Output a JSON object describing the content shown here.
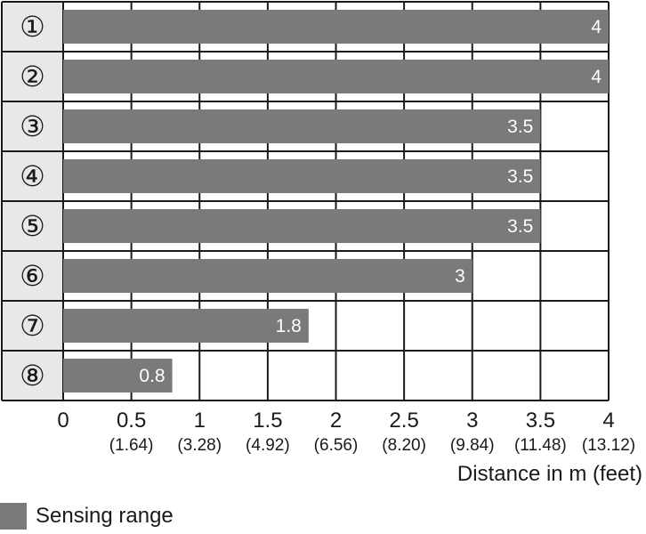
{
  "chart_data": {
    "type": "bar",
    "orientation": "horizontal",
    "categories": [
      "①",
      "②",
      "③",
      "④",
      "⑤",
      "⑥",
      "⑦",
      "⑧"
    ],
    "values": [
      4,
      4,
      3.5,
      3.5,
      3.5,
      3,
      1.8,
      0.8
    ],
    "data_labels": [
      "4",
      "4",
      "3.5",
      "3.5",
      "3.5",
      "3",
      "1.8",
      "0.8"
    ],
    "xlabel": "Distance in m (feet)",
    "xlim": [
      0,
      4
    ],
    "x_ticks": [
      {
        "value": 0,
        "label": "0",
        "sub": ""
      },
      {
        "value": 0.5,
        "label": "0.5",
        "sub": "(1.64)"
      },
      {
        "value": 1,
        "label": "1",
        "sub": "(3.28)"
      },
      {
        "value": 1.5,
        "label": "1.5",
        "sub": "(4.92)"
      },
      {
        "value": 2,
        "label": "2",
        "sub": "(6.56)"
      },
      {
        "value": 2.5,
        "label": "2.5",
        "sub": "(8.20)"
      },
      {
        "value": 3,
        "label": "3",
        "sub": "(9.84)"
      },
      {
        "value": 3.5,
        "label": "3.5",
        "sub": "(11.48)"
      },
      {
        "value": 4,
        "label": "4",
        "sub": "(13.12)"
      }
    ],
    "grid": true,
    "legend": {
      "label": "Sensing range",
      "placement": "bottom-left"
    },
    "colors": {
      "bar": "#7a7a7c",
      "label_column": "#e8e8e8",
      "grid": "#1a1a1a"
    }
  }
}
